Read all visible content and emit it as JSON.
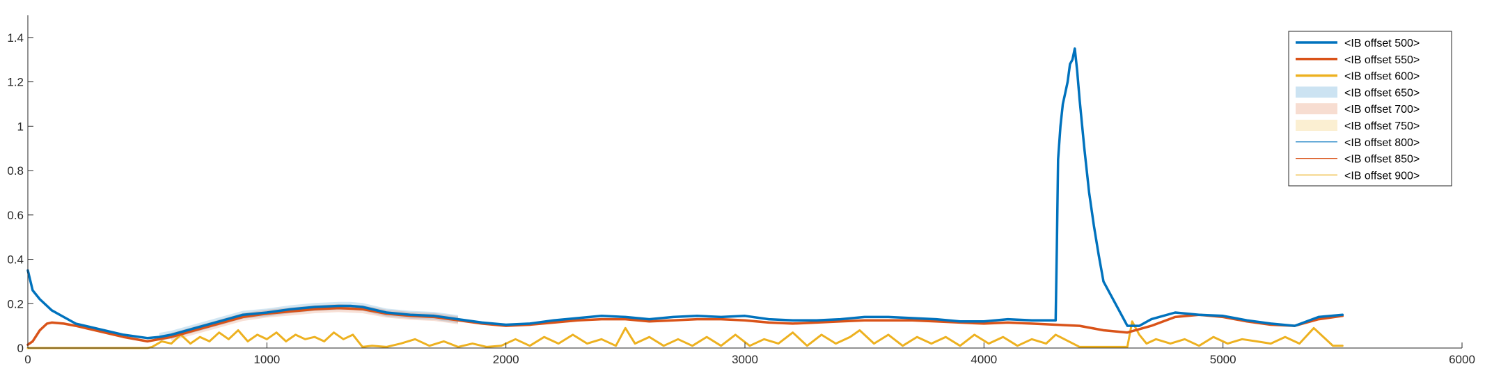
{
  "chart_data": {
    "type": "line",
    "title": "",
    "xlabel": "",
    "ylabel": "",
    "xlim": [
      0,
      6000
    ],
    "ylim": [
      0,
      1.5
    ],
    "x_ticks": [
      0,
      1000,
      2000,
      3000,
      4000,
      5000,
      6000
    ],
    "x_tick_labels": [
      "0",
      "1000",
      "2000",
      "3000",
      "4000",
      "5000",
      "6000"
    ],
    "y_ticks": [
      0,
      0.2,
      0.4,
      0.6,
      0.8,
      1.0,
      1.2,
      1.4
    ],
    "y_tick_labels": [
      "0",
      "0.2",
      "0.4",
      "0.6",
      "0.8",
      "1",
      "1.2",
      "1.4"
    ],
    "grid": false,
    "legend_position": "top-right",
    "legend": [
      {
        "label": "<IB offset 500>",
        "style": "thick-line",
        "color": "#0072BD"
      },
      {
        "label": "<IB offset 550>",
        "style": "thick-line",
        "color": "#D95319"
      },
      {
        "label": "<IB offset 600>",
        "style": "thick-line",
        "color": "#EDB120"
      },
      {
        "label": "<IB offset 650>",
        "style": "band",
        "color": "#0072BD"
      },
      {
        "label": "<IB offset 700>",
        "style": "band",
        "color": "#D95319"
      },
      {
        "label": "<IB offset 750>",
        "style": "band",
        "color": "#EDB120"
      },
      {
        "label": "<IB offset 800>",
        "style": "thin-line",
        "color": "#0072BD"
      },
      {
        "label": "<IB offset 850>",
        "style": "thin-line",
        "color": "#D95319"
      },
      {
        "label": "<IB offset 900>",
        "style": "thin-line",
        "color": "#EDB120"
      }
    ],
    "series": [
      {
        "color": "#0072BD",
        "x": [
          0,
          20,
          50,
          100,
          150,
          200,
          300,
          400,
          500,
          550,
          600,
          700,
          800,
          900,
          1000,
          1100,
          1200,
          1300,
          1350,
          1400,
          1500,
          1600,
          1700,
          1800,
          1900,
          2000,
          2100,
          2200,
          2300,
          2400,
          2500,
          2600,
          2700,
          2800,
          2900,
          3000,
          3100,
          3200,
          3300,
          3400,
          3500,
          3600,
          3700,
          3800,
          3900,
          4000,
          4100,
          4200,
          4300,
          4305,
          4310,
          4320,
          4330,
          4340,
          4350,
          4360,
          4370,
          4380,
          4390,
          4400,
          4420,
          4440,
          4460,
          4480,
          4500,
          4550,
          4600,
          4650,
          4700,
          4800,
          4900,
          5000,
          5100,
          5200,
          5300,
          5400,
          5500
        ],
        "y": [
          0.35,
          0.26,
          0.22,
          0.17,
          0.14,
          0.11,
          0.085,
          0.06,
          0.045,
          0.05,
          0.06,
          0.09,
          0.12,
          0.15,
          0.16,
          0.175,
          0.185,
          0.19,
          0.19,
          0.185,
          0.16,
          0.15,
          0.145,
          0.13,
          0.115,
          0.105,
          0.11,
          0.125,
          0.135,
          0.145,
          0.14,
          0.13,
          0.14,
          0.145,
          0.14,
          0.145,
          0.13,
          0.125,
          0.125,
          0.13,
          0.14,
          0.14,
          0.135,
          0.13,
          0.12,
          0.12,
          0.13,
          0.125,
          0.125,
          0.45,
          0.85,
          1.0,
          1.1,
          1.15,
          1.2,
          1.28,
          1.3,
          1.35,
          1.25,
          1.12,
          0.9,
          0.7,
          0.55,
          0.42,
          0.3,
          0.2,
          0.1,
          0.1,
          0.13,
          0.16,
          0.15,
          0.145,
          0.125,
          0.11,
          0.1,
          0.14,
          0.15
        ]
      },
      {
        "color": "#D95319",
        "x": [
          0,
          20,
          50,
          80,
          100,
          150,
          200,
          300,
          400,
          500,
          600,
          700,
          800,
          900,
          1000,
          1100,
          1200,
          1300,
          1400,
          1500,
          1600,
          1700,
          1800,
          1900,
          2000,
          2100,
          2200,
          2300,
          2400,
          2500,
          2600,
          2700,
          2800,
          2900,
          3000,
          3100,
          3200,
          3300,
          3400,
          3500,
          3600,
          3700,
          3800,
          3900,
          4000,
          4100,
          4200,
          4300,
          4400,
          4500,
          4600,
          4700,
          4800,
          4900,
          5000,
          5100,
          5200,
          5300,
          5400,
          5500
        ],
        "y": [
          0.015,
          0.03,
          0.08,
          0.11,
          0.115,
          0.11,
          0.1,
          0.075,
          0.05,
          0.03,
          0.05,
          0.08,
          0.11,
          0.14,
          0.155,
          0.165,
          0.175,
          0.18,
          0.175,
          0.155,
          0.145,
          0.14,
          0.125,
          0.11,
          0.1,
          0.105,
          0.115,
          0.125,
          0.13,
          0.13,
          0.12,
          0.125,
          0.13,
          0.13,
          0.125,
          0.115,
          0.11,
          0.115,
          0.12,
          0.125,
          0.125,
          0.125,
          0.12,
          0.115,
          0.11,
          0.115,
          0.11,
          0.105,
          0.1,
          0.08,
          0.07,
          0.1,
          0.14,
          0.15,
          0.14,
          0.12,
          0.105,
          0.1,
          0.13,
          0.145
        ]
      },
      {
        "color": "#EDB120",
        "x": [
          0,
          500,
          520,
          560,
          600,
          640,
          680,
          720,
          760,
          800,
          840,
          880,
          920,
          960,
          1000,
          1040,
          1080,
          1120,
          1160,
          1200,
          1240,
          1280,
          1320,
          1360,
          1400,
          1440,
          1500,
          1560,
          1620,
          1680,
          1740,
          1800,
          1860,
          1920,
          1980,
          2040,
          2100,
          2160,
          2220,
          2280,
          2340,
          2400,
          2460,
          2500,
          2540,
          2600,
          2660,
          2720,
          2780,
          2840,
          2900,
          2960,
          3020,
          3080,
          3140,
          3200,
          3260,
          3320,
          3380,
          3440,
          3480,
          3540,
          3600,
          3660,
          3720,
          3780,
          3840,
          3900,
          3960,
          4020,
          4080,
          4140,
          4200,
          4260,
          4300,
          4400,
          4500,
          4600,
          4620,
          4650,
          4680,
          4720,
          4780,
          4840,
          4900,
          4960,
          5020,
          5080,
          5140,
          5200,
          5260,
          5320,
          5380,
          5420,
          5460,
          5500
        ],
        "y": [
          0,
          0,
          0.005,
          0.03,
          0.02,
          0.06,
          0.02,
          0.05,
          0.03,
          0.07,
          0.04,
          0.08,
          0.03,
          0.06,
          0.04,
          0.07,
          0.03,
          0.06,
          0.04,
          0.05,
          0.03,
          0.07,
          0.04,
          0.06,
          0.005,
          0.01,
          0.005,
          0.02,
          0.04,
          0.01,
          0.03,
          0.005,
          0.02,
          0.005,
          0.01,
          0.04,
          0.01,
          0.05,
          0.02,
          0.06,
          0.02,
          0.04,
          0.01,
          0.09,
          0.02,
          0.05,
          0.01,
          0.04,
          0.01,
          0.05,
          0.01,
          0.06,
          0.01,
          0.04,
          0.02,
          0.07,
          0.01,
          0.06,
          0.02,
          0.05,
          0.08,
          0.02,
          0.06,
          0.01,
          0.05,
          0.02,
          0.05,
          0.01,
          0.06,
          0.02,
          0.05,
          0.01,
          0.04,
          0.02,
          0.06,
          0.005,
          0.005,
          0.005,
          0.12,
          0.06,
          0.02,
          0.04,
          0.02,
          0.04,
          0.01,
          0.05,
          0.02,
          0.04,
          0.03,
          0.02,
          0.05,
          0.02,
          0.09,
          0.05,
          0.01,
          0.01
        ]
      }
    ]
  }
}
